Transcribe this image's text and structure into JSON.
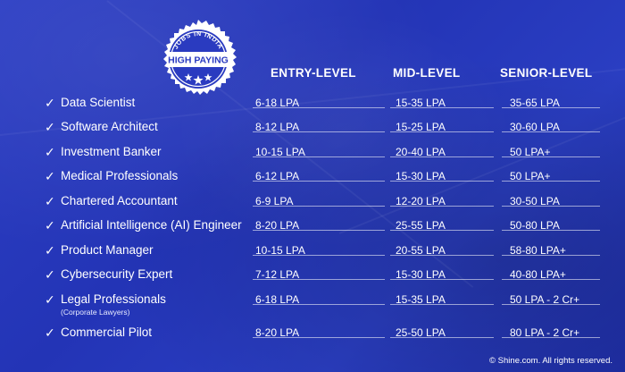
{
  "stamp": {
    "top_text": "JOBS IN INDIA",
    "main_text": "HIGH PAYING"
  },
  "columns": {
    "entry": "ENTRY-LEVEL",
    "mid": "MID-LEVEL",
    "senior": "SENIOR-LEVEL"
  },
  "rows": [
    {
      "role": "Data Scientist",
      "sub": "",
      "entry": "6-18 LPA",
      "mid": "15-35 LPA",
      "senior": "35-65 LPA"
    },
    {
      "role": "Software Architect",
      "sub": "",
      "entry": "8-12 LPA",
      "mid": "15-25 LPA",
      "senior": "30-60 LPA"
    },
    {
      "role": "Investment Banker",
      "sub": "",
      "entry": "10-15 LPA",
      "mid": "20-40 LPA",
      "senior": "50 LPA+"
    },
    {
      "role": "Medical Professionals",
      "sub": "",
      "entry": "6-12 LPA",
      "mid": "15-30 LPA",
      "senior": "50 LPA+"
    },
    {
      "role": "Chartered Accountant",
      "sub": "",
      "entry": "6-9 LPA",
      "mid": "12-20 LPA",
      "senior": "30-50 LPA"
    },
    {
      "role": "Artificial Intelligence (AI) Engineer",
      "sub": "",
      "entry": "8-20 LPA",
      "mid": "25-55 LPA",
      "senior": "50-80 LPA"
    },
    {
      "role": "Product Manager",
      "sub": "",
      "entry": "10-15 LPA",
      "mid": "20-55 LPA",
      "senior": "58-80 LPA+"
    },
    {
      "role": "Cybersecurity Expert",
      "sub": "",
      "entry": "7-12 LPA",
      "mid": "15-30 LPA",
      "senior": "40-80 LPA+"
    },
    {
      "role": "Legal Professionals",
      "sub": "(Corporate Lawyers)",
      "entry": "6-18 LPA",
      "mid": "15-35 LPA",
      "senior": "50 LPA - 2 Cr+"
    },
    {
      "role": "Commercial Pilot",
      "sub": "",
      "entry": "8-20 LPA",
      "mid": "25-50 LPA",
      "senior": "80 LPA - 2 Cr+"
    }
  ],
  "check_glyph": "✓",
  "footer": "© Shine.com. All rights reserved.",
  "colors": {
    "background": "#2a3bc0",
    "text": "#ffffff"
  }
}
